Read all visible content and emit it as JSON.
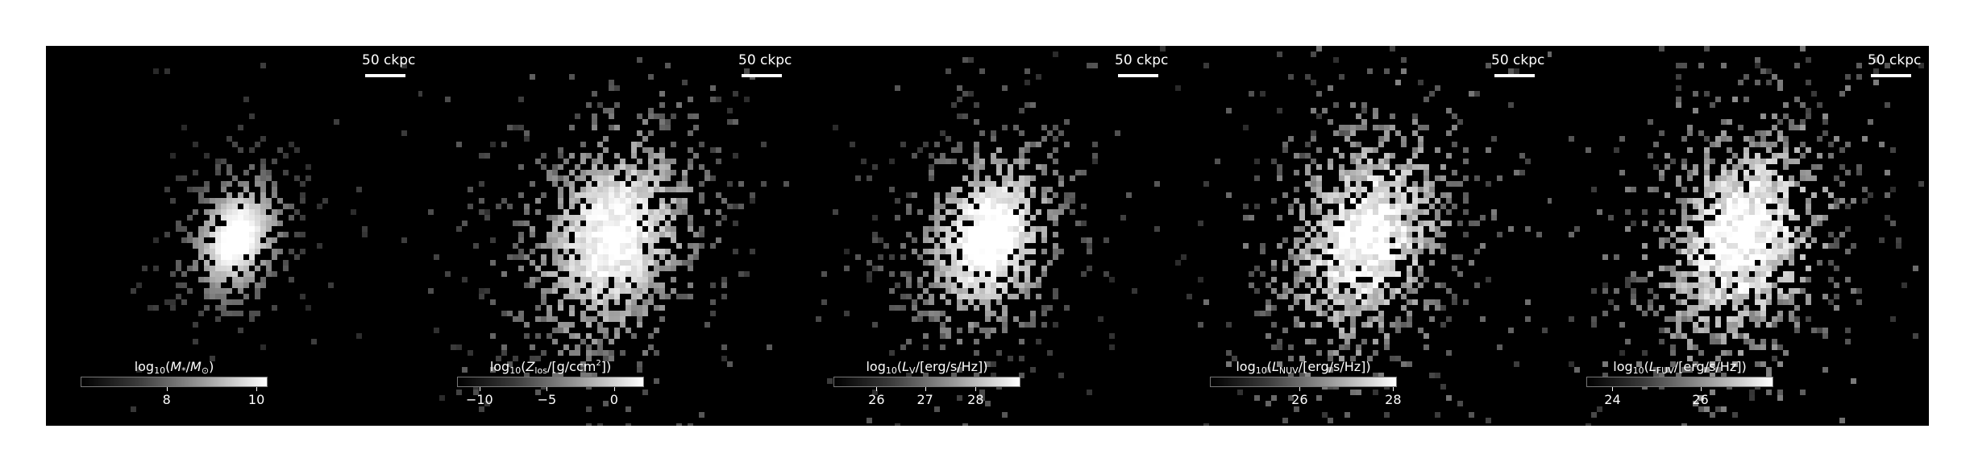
{
  "figure": {
    "scalebar_label": "50 ckpc",
    "panels": [
      {
        "id": "stellar-mass",
        "colorbar_title_html": "log<sub>10</sub>(<i>M</i><sub>*</sub>/<i>M</i><sub>⊙</sub>)",
        "ticks": [
          {
            "label": "8",
            "frac": 0.46
          },
          {
            "label": "10",
            "frac": 0.94
          }
        ],
        "spread": 0.55,
        "core": 1.0,
        "noise": 0.25
      },
      {
        "id": "metallicity",
        "colorbar_title_html": "log<sub>10</sub>(<i>Z</i><sub>los</sub>/[g/ccm<sup>2</sup>])",
        "ticks": [
          {
            "label": "−10",
            "frac": 0.12
          },
          {
            "label": "−5",
            "frac": 0.48
          },
          {
            "label": "0",
            "frac": 0.84
          }
        ],
        "spread": 1.0,
        "core": 0.85,
        "noise": 0.6
      },
      {
        "id": "luminosity-v",
        "colorbar_title_html": "log<sub>10</sub>(<i>L</i><sub>V</sub>/[erg/s/Hz])",
        "ticks": [
          {
            "label": "26",
            "frac": 0.23
          },
          {
            "label": "27",
            "frac": 0.49
          },
          {
            "label": "28",
            "frac": 0.76
          }
        ],
        "spread": 0.85,
        "core": 0.95,
        "noise": 0.55
      },
      {
        "id": "luminosity-nuv",
        "colorbar_title_html": "log<sub>10</sub>(<i>L</i><sub>NUV</sub>/[erg/s/Hz])",
        "ticks": [
          {
            "label": "26",
            "frac": 0.48
          },
          {
            "label": "28",
            "frac": 0.98
          }
        ],
        "spread": 1.0,
        "core": 0.8,
        "noise": 0.85
      },
      {
        "id": "luminosity-fuv",
        "colorbar_title_html": "log<sub>10</sub>(<i>L</i><sub>FUV</sub>/[erg/s/Hz])",
        "ticks": [
          {
            "label": "24",
            "frac": 0.14
          },
          {
            "label": "26",
            "frac": 0.61
          }
        ],
        "spread": 1.0,
        "core": 0.8,
        "noise": 0.95
      }
    ]
  }
}
